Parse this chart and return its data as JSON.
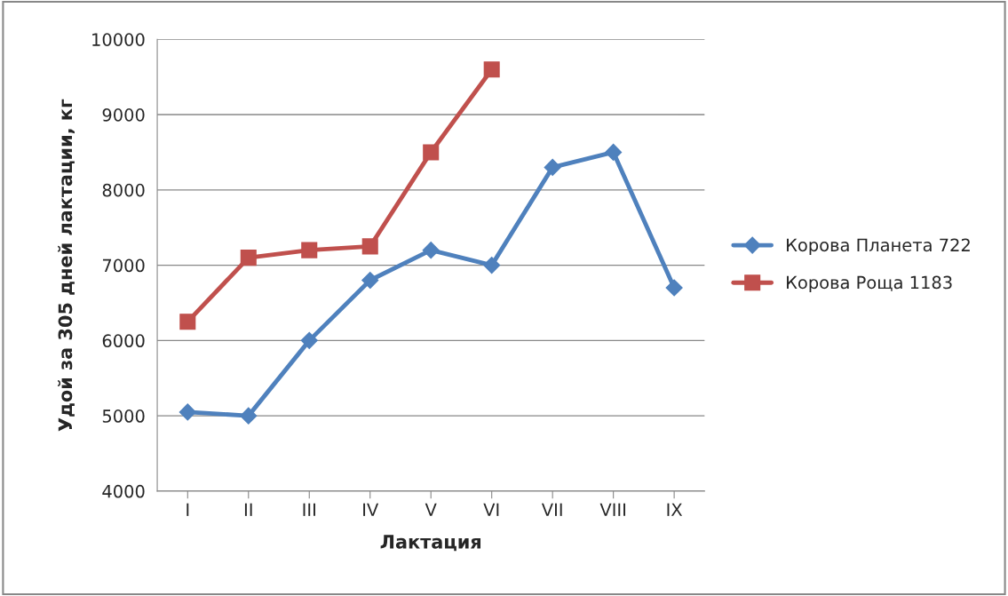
{
  "chart_data": {
    "type": "line",
    "xlabel": "Лактация",
    "ylabel": "Удой за 305 дней лактации, кг",
    "categories": [
      "I",
      "II",
      "III",
      "IV",
      "V",
      "VI",
      "VII",
      "VIII",
      "IX"
    ],
    "series": [
      {
        "name": "Корова Планета 722",
        "color": "#4f81bd",
        "marker": "diamond",
        "values": [
          5050,
          5000,
          6000,
          6800,
          7200,
          7000,
          8300,
          8500,
          6700
        ]
      },
      {
        "name": "Корова Роща 1183",
        "color": "#c0504d",
        "marker": "square",
        "values": [
          6250,
          7100,
          7200,
          7250,
          8500,
          9600,
          null,
          null,
          null
        ]
      }
    ],
    "ylim": [
      4000,
      10000
    ],
    "yticks": [
      4000,
      5000,
      6000,
      7000,
      8000,
      9000,
      10000
    ],
    "grid": "y",
    "legend": "right"
  }
}
